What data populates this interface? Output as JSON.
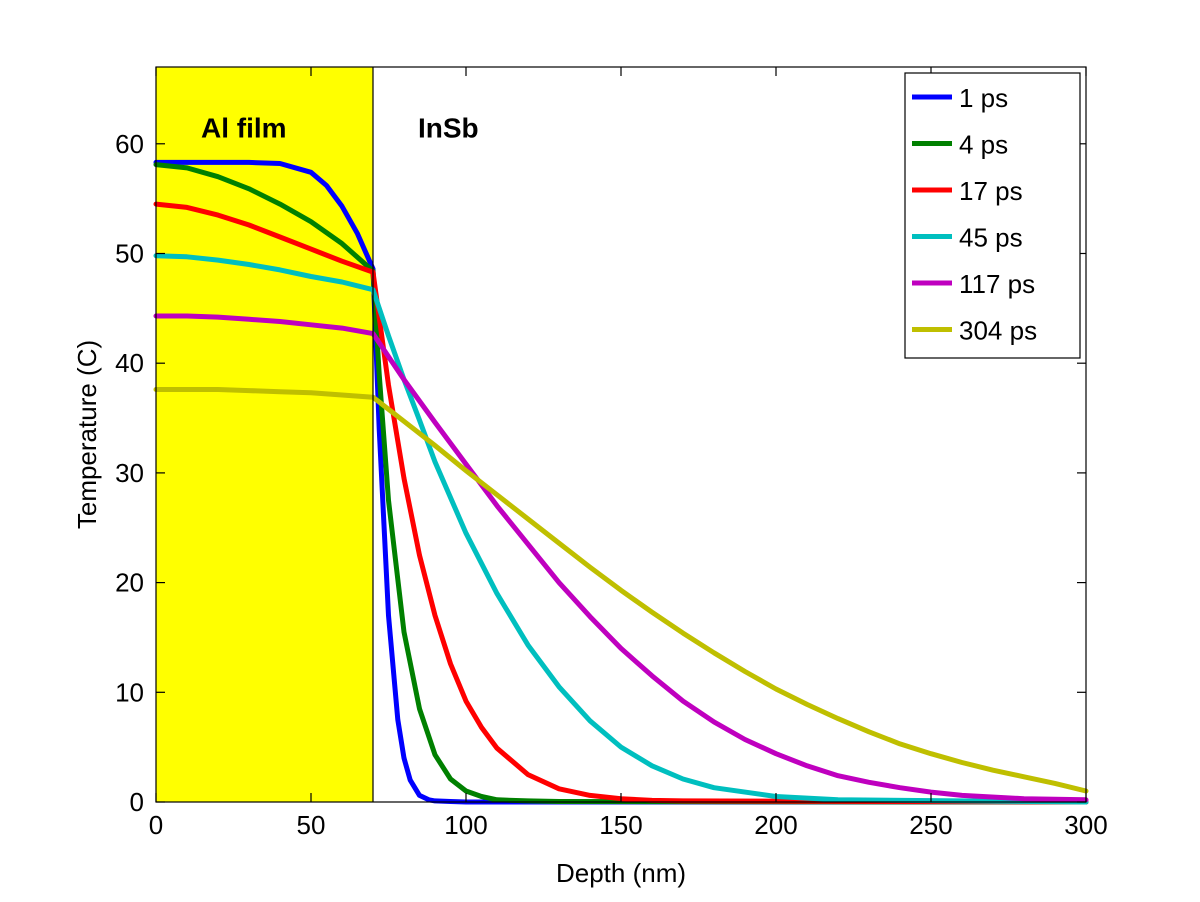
{
  "chart_data": {
    "type": "line",
    "xlabel": "Depth (nm)",
    "ylabel": "Temperature (C)",
    "xlim": [
      0,
      300
    ],
    "ylim": [
      0,
      67
    ],
    "xticks": [
      "0",
      "50",
      "100",
      "150",
      "200",
      "250",
      "300"
    ],
    "yticks": [
      "0",
      "10",
      "20",
      "30",
      "40",
      "50",
      "60"
    ],
    "grid": false,
    "legend_position": "top-right",
    "annotations": [
      {
        "text": "Al film",
        "x": 10,
        "y": 61.5
      },
      {
        "text": "InSb",
        "x": 80,
        "y": 61.5
      }
    ],
    "regions": [
      {
        "name": "Al film",
        "x_from": 0,
        "x_to": 70,
        "color": "#ffff00"
      }
    ],
    "boundary_x": 70,
    "series": [
      {
        "name": "1 ps",
        "color": "#0000ff",
        "x": [
          0,
          10,
          20,
          30,
          40,
          50,
          55,
          60,
          65,
          70,
          72,
          75,
          78,
          80,
          82,
          85,
          88,
          90,
          95,
          100,
          110,
          300
        ],
        "y": [
          58.3,
          58.3,
          58.3,
          58.3,
          58.2,
          57.4,
          56.2,
          54.3,
          51.8,
          48.6,
          34.0,
          17.0,
          7.5,
          4.0,
          2.0,
          0.6,
          0.2,
          0.1,
          0.05,
          0.0,
          0.0,
          0.0
        ]
      },
      {
        "name": "4 ps",
        "color": "#008000",
        "x": [
          0,
          10,
          20,
          30,
          40,
          50,
          60,
          70,
          72,
          75,
          80,
          85,
          90,
          95,
          100,
          105,
          110,
          120,
          130,
          300
        ],
        "y": [
          58.1,
          57.8,
          57.0,
          55.9,
          54.5,
          52.9,
          50.9,
          48.4,
          39.0,
          27.5,
          15.5,
          8.5,
          4.3,
          2.1,
          1.0,
          0.5,
          0.2,
          0.1,
          0.05,
          0.0
        ]
      },
      {
        "name": "17 ps",
        "color": "#ff0000",
        "x": [
          0,
          10,
          20,
          30,
          40,
          50,
          60,
          70,
          75,
          80,
          85,
          90,
          95,
          100,
          105,
          110,
          120,
          130,
          140,
          150,
          160,
          170,
          300
        ],
        "y": [
          54.5,
          54.2,
          53.5,
          52.6,
          51.5,
          50.4,
          49.3,
          48.3,
          38.0,
          29.5,
          22.5,
          17.0,
          12.6,
          9.2,
          6.8,
          4.9,
          2.5,
          1.2,
          0.6,
          0.3,
          0.15,
          0.1,
          0.0
        ]
      },
      {
        "name": "45 ps",
        "color": "#00bfbf",
        "x": [
          0,
          10,
          20,
          30,
          40,
          50,
          60,
          70,
          75,
          80,
          85,
          90,
          100,
          110,
          120,
          130,
          140,
          150,
          160,
          170,
          180,
          200,
          220,
          300
        ],
        "y": [
          49.8,
          49.7,
          49.4,
          49.0,
          48.5,
          47.9,
          47.4,
          46.7,
          42.5,
          38.5,
          34.8,
          31.0,
          24.5,
          19.0,
          14.3,
          10.5,
          7.4,
          5.0,
          3.3,
          2.1,
          1.3,
          0.5,
          0.2,
          0.0
        ]
      },
      {
        "name": "117 ps",
        "color": "#bf00bf",
        "x": [
          0,
          10,
          20,
          30,
          40,
          50,
          60,
          70,
          80,
          90,
          100,
          110,
          120,
          130,
          140,
          150,
          160,
          170,
          180,
          190,
          200,
          210,
          220,
          230,
          240,
          250,
          260,
          280,
          300
        ],
        "y": [
          44.3,
          44.3,
          44.2,
          44.0,
          43.8,
          43.5,
          43.2,
          42.7,
          38.5,
          34.6,
          30.8,
          27.0,
          23.5,
          20.0,
          16.9,
          14.0,
          11.5,
          9.2,
          7.3,
          5.7,
          4.4,
          3.3,
          2.4,
          1.8,
          1.3,
          0.9,
          0.6,
          0.3,
          0.2
        ]
      },
      {
        "name": "304 ps",
        "color": "#bfbf00",
        "x": [
          0,
          10,
          20,
          30,
          40,
          50,
          60,
          70,
          80,
          90,
          100,
          110,
          120,
          130,
          140,
          150,
          160,
          170,
          180,
          190,
          200,
          210,
          220,
          230,
          240,
          250,
          260,
          270,
          280,
          290,
          300
        ],
        "y": [
          37.6,
          37.6,
          37.6,
          37.5,
          37.4,
          37.3,
          37.1,
          36.9,
          34.7,
          32.5,
          30.2,
          28.0,
          25.8,
          23.6,
          21.4,
          19.3,
          17.3,
          15.4,
          13.6,
          11.9,
          10.3,
          8.9,
          7.6,
          6.4,
          5.3,
          4.4,
          3.6,
          2.9,
          2.3,
          1.7,
          1.0
        ]
      }
    ]
  }
}
